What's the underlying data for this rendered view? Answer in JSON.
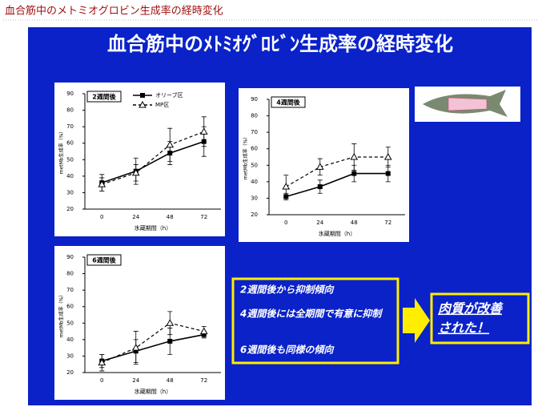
{
  "header": {
    "title": "血合筋中のメトミオグロビン生成率の経時変化"
  },
  "slide": {
    "title": "血合筋中のﾒﾄﾐｵｸﾞﾛﾋﾞﾝ生成率の経時変化"
  },
  "chart_data": [
    {
      "type": "line",
      "title": "2週間後",
      "categories": [
        "0",
        "24",
        "48",
        "72"
      ],
      "xlabel": "氷蔵期間（h）",
      "ylabel": "metMb生成率（%）",
      "ylim": [
        20,
        90
      ],
      "yticks": [
        20,
        30,
        40,
        50,
        60,
        70,
        80,
        90
      ],
      "legend": true,
      "series": [
        {
          "name": "オリーブ区",
          "color": "#000000",
          "marker": "square",
          "dash": false,
          "values": [
            36,
            43,
            54,
            61
          ],
          "errors": [
            5,
            8,
            7,
            9
          ]
        },
        {
          "name": "MP区",
          "color": "#000000",
          "marker": "triangle",
          "dash": true,
          "values": [
            35,
            42,
            59,
            67
          ],
          "errors": [
            4,
            5,
            10,
            9
          ]
        }
      ]
    },
    {
      "type": "line",
      "title": "4週間後",
      "categories": [
        "0",
        "24",
        "48",
        "72"
      ],
      "xlabel": "氷蔵期間（h）",
      "ylabel": "metMb生成率（%）",
      "ylim": [
        20,
        90
      ],
      "yticks": [
        20,
        30,
        40,
        50,
        60,
        70,
        80,
        90
      ],
      "legend": false,
      "series": [
        {
          "color": "#000000",
          "marker": "square",
          "dash": false,
          "values": [
            31,
            37,
            45,
            45
          ],
          "errors": [
            2,
            4,
            5,
            5
          ]
        },
        {
          "color": "#000000",
          "marker": "triangle",
          "dash": true,
          "values": [
            37,
            49,
            55,
            55
          ],
          "errors": [
            7,
            5,
            8,
            6
          ]
        }
      ]
    },
    {
      "type": "line",
      "title": "6週間後",
      "categories": [
        "0",
        "24",
        "48",
        "72"
      ],
      "xlabel": "氷蔵期間（h）",
      "ylabel": "metMb生成率（%）",
      "ylim": [
        20,
        90
      ],
      "yticks": [
        20,
        30,
        40,
        50,
        60,
        70,
        80,
        90
      ],
      "legend": false,
      "series": [
        {
          "color": "#000000",
          "marker": "square",
          "dash": false,
          "values": [
            27,
            33,
            39,
            43
          ],
          "errors": [
            4,
            7,
            8,
            2
          ]
        },
        {
          "color": "#000000",
          "marker": "triangle",
          "dash": true,
          "values": [
            26,
            35,
            50,
            45
          ],
          "errors": [
            5,
            10,
            7,
            3
          ]
        }
      ]
    }
  ],
  "notes": [
    "2週間後から抑制傾向",
    "4週間後には全期間で有意に抑制",
    "6週間後も同様の傾向"
  ],
  "conclusion": [
    "肉質が改善",
    "された！"
  ]
}
